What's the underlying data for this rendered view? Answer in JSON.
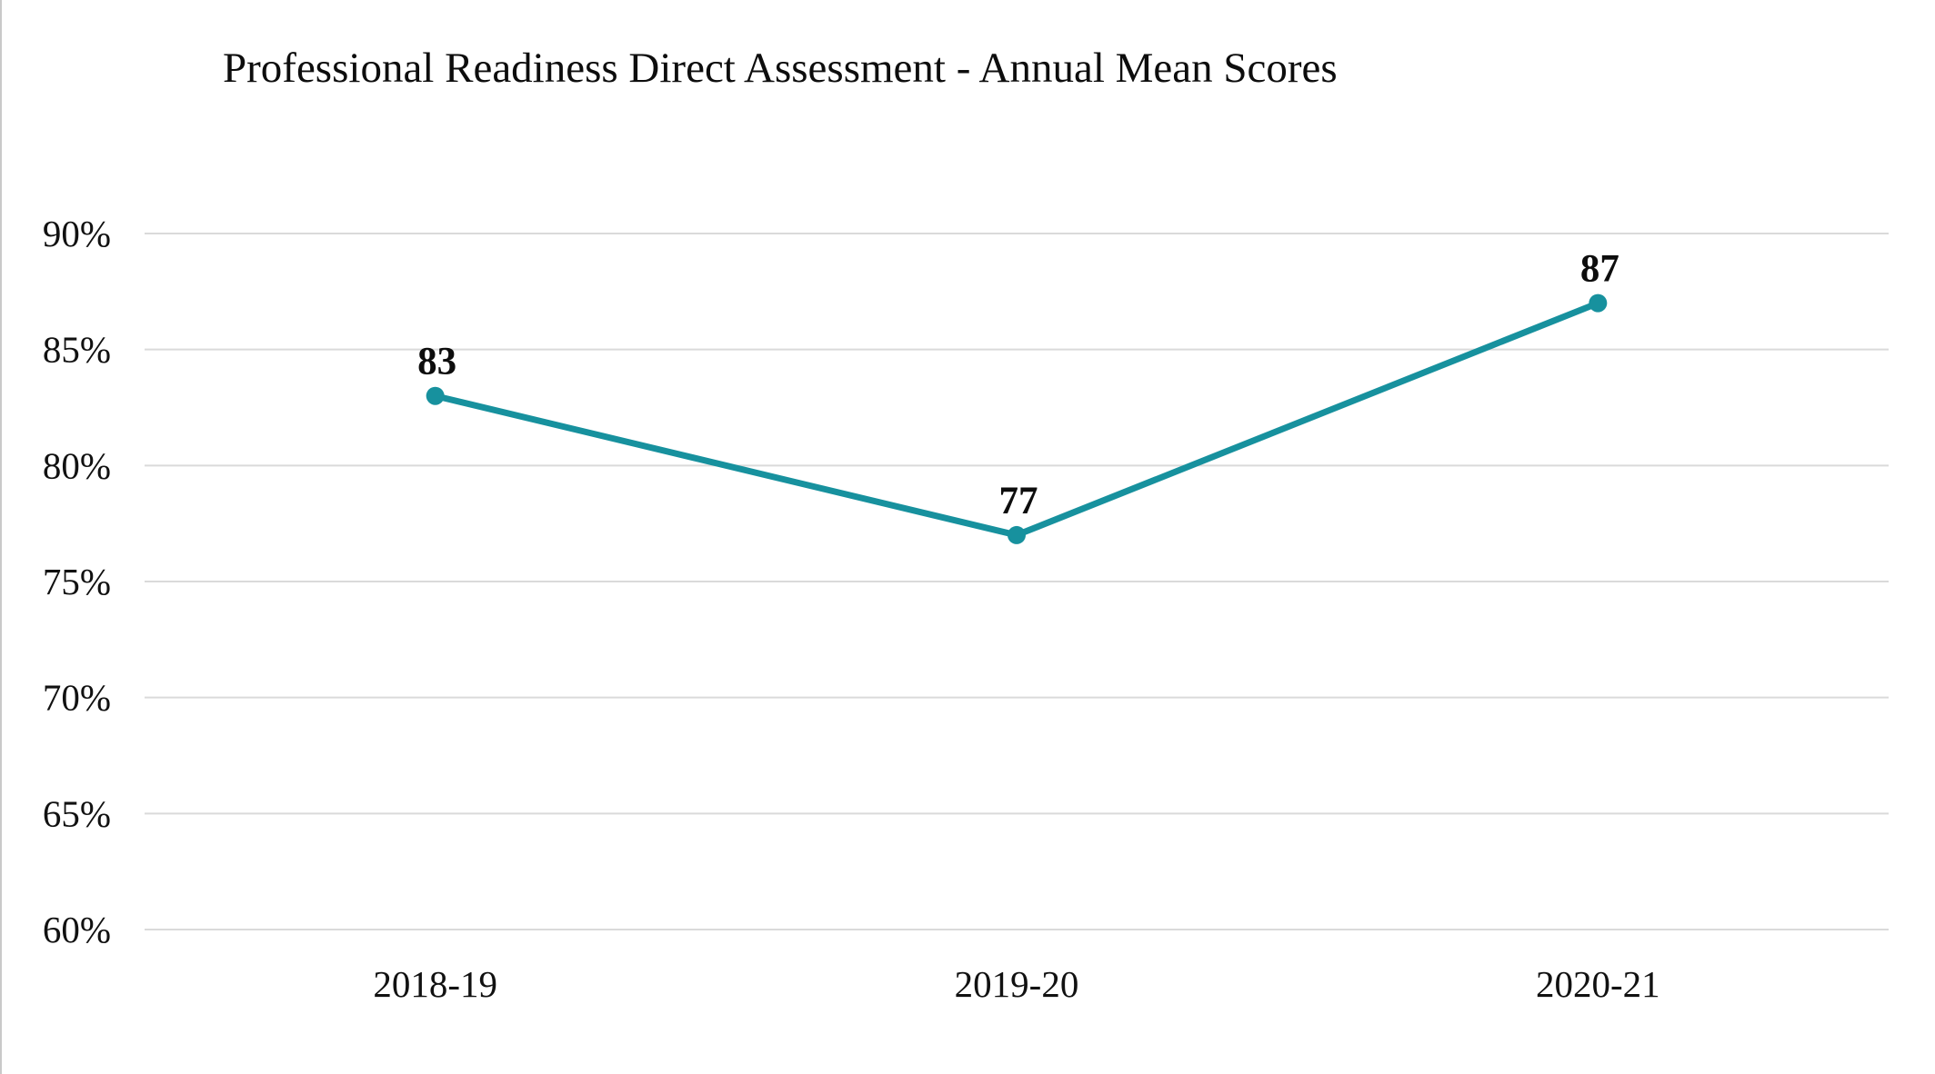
{
  "title": "Professional Readiness Direct Assessment - Annual Mean Scores",
  "chart_data": {
    "type": "line",
    "title": "Professional Readiness Direct Assessment - Annual Mean Scores",
    "categories": [
      "2018-19",
      "2019-20",
      "2020-21"
    ],
    "values": [
      83,
      77,
      87
    ],
    "data_labels": [
      "83",
      "77",
      "87"
    ],
    "xlabel": "",
    "ylabel": "",
    "ylim": [
      60,
      90
    ],
    "ytick_values": [
      60,
      65,
      70,
      75,
      80,
      85,
      90
    ],
    "ytick_labels": [
      "60%",
      "65%",
      "70%",
      "75%",
      "80%",
      "85%",
      "90%"
    ],
    "grid": true,
    "legend_position": "none",
    "line_color": "#17919E",
    "marker_color": "#17919E",
    "gridline_color": "#dadada",
    "text_color": "#111111"
  }
}
